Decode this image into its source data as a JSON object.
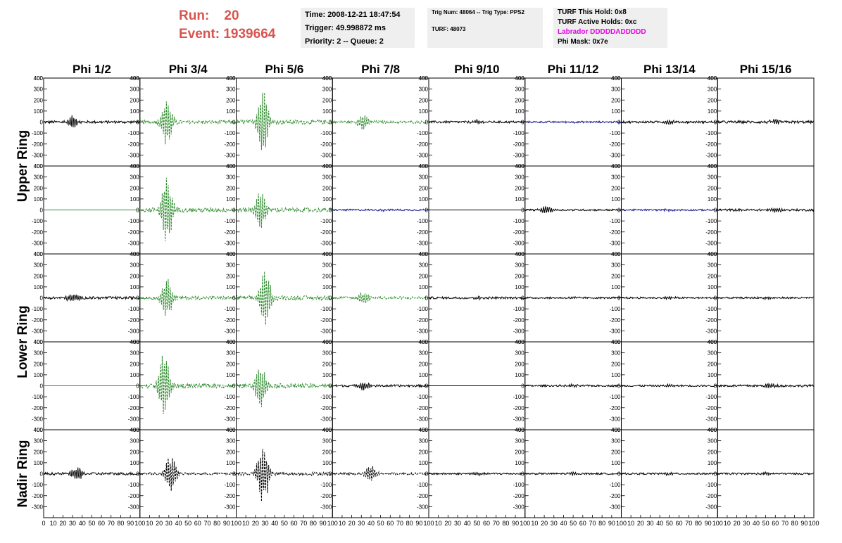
{
  "header": {
    "run_label": "Run:",
    "run_value": "20",
    "event_label": "Event:",
    "event_value": "1939664"
  },
  "info_time": {
    "time": "Time: 2008-12-21 18:47:54",
    "trigger": "Trigger: 49.998872 ms",
    "priority": "Priority: 2 -- Queue: 2"
  },
  "info_trig": {
    "trig": "Trig Num: 48064 -- Trig Type: PPS2",
    "turf": "TURF: 48073"
  },
  "info_turf": {
    "hold": "TURF This Hold: 0x8",
    "active": "TURF Active Holds: 0xc",
    "labrador": "Labrador DDDDDADDDDD",
    "phimask": "Phi Mask: 0x7e"
  },
  "colors": {
    "header_red": "#d9534f",
    "labrador_magenta": "#e600e6",
    "trace_black": "#000000",
    "trace_green": "#2e8b2e",
    "trace_blue": "#1a1a8c"
  },
  "chart_data": {
    "type": "line",
    "columns": [
      "Phi 1/2",
      "Phi 3/4",
      "Phi 5/6",
      "Phi 7/8",
      "Phi 9/10",
      "Phi 11/12",
      "Phi 13/14",
      "Phi 15/16"
    ],
    "ring_labels": [
      "Upper Ring",
      "Lower Ring",
      "Nadir Ring"
    ],
    "ylim": [
      -400,
      400
    ],
    "xlim": [
      0,
      100
    ],
    "y_ticks": [
      -300,
      -200,
      -100,
      0,
      100,
      200,
      300,
      400
    ],
    "x_ticks": [
      0,
      10,
      20,
      30,
      40,
      50,
      60,
      70,
      80,
      90,
      100
    ],
    "panels": [
      [
        {
          "color": "black",
          "style": "solid",
          "amp": 12,
          "peak": 60,
          "center": 30
        },
        {
          "color": "green",
          "style": "dashed",
          "amp": 15,
          "peak": 230,
          "center": 28
        },
        {
          "color": "green",
          "style": "dashed",
          "amp": 20,
          "peak": 360,
          "center": 28
        },
        {
          "color": "green",
          "style": "dashed",
          "amp": 12,
          "peak": 80,
          "center": 32
        },
        {
          "color": "black",
          "style": "solid",
          "amp": 10,
          "peak": 18,
          "center": 50
        },
        {
          "color": "blue",
          "style": "solid",
          "amp": 8,
          "peak": 10,
          "center": 50
        },
        {
          "color": "black",
          "style": "solid",
          "amp": 10,
          "peak": 20,
          "center": 50
        },
        {
          "color": "black",
          "style": "solid",
          "amp": 12,
          "peak": 25,
          "center": 60
        }
      ],
      [
        {
          "color": "green",
          "style": "solid",
          "amp": 0,
          "peak": 0,
          "center": 50
        },
        {
          "color": "green",
          "style": "dashed",
          "amp": 20,
          "peak": 350,
          "center": 28
        },
        {
          "color": "green",
          "style": "dashed",
          "amp": 20,
          "peak": 200,
          "center": 25
        },
        {
          "color": "blue",
          "style": "solid",
          "amp": 8,
          "peak": 10,
          "center": 50
        },
        {
          "color": "black",
          "style": "solid",
          "amp": 0,
          "peak": 0,
          "center": 50
        },
        {
          "color": "black",
          "style": "solid",
          "amp": 8,
          "peak": 40,
          "center": 22
        },
        {
          "color": "blue",
          "style": "solid",
          "amp": 8,
          "peak": 10,
          "center": 50
        },
        {
          "color": "black",
          "style": "solid",
          "amp": 10,
          "peak": 25,
          "center": 60
        }
      ],
      [
        {
          "color": "black",
          "style": "solid",
          "amp": 12,
          "peak": 40,
          "center": 30
        },
        {
          "color": "green",
          "style": "dashed",
          "amp": 15,
          "peak": 200,
          "center": 28
        },
        {
          "color": "green",
          "style": "dashed",
          "amp": 20,
          "peak": 300,
          "center": 30
        },
        {
          "color": "green",
          "style": "dashed",
          "amp": 12,
          "peak": 60,
          "center": 32
        },
        {
          "color": "black",
          "style": "solid",
          "amp": 10,
          "peak": 15,
          "center": 50
        },
        {
          "color": "black",
          "style": "solid",
          "amp": 8,
          "peak": 12,
          "center": 50
        },
        {
          "color": "black",
          "style": "solid",
          "amp": 8,
          "peak": 12,
          "center": 50
        },
        {
          "color": "black",
          "style": "solid",
          "amp": 8,
          "peak": 12,
          "center": 50
        }
      ],
      [
        {
          "color": "green",
          "style": "solid",
          "amp": 0,
          "peak": 0,
          "center": 50
        },
        {
          "color": "green",
          "style": "dashed",
          "amp": 20,
          "peak": 330,
          "center": 25
        },
        {
          "color": "green",
          "style": "dashed",
          "amp": 20,
          "peak": 200,
          "center": 25
        },
        {
          "color": "black",
          "style": "solid",
          "amp": 10,
          "peak": 40,
          "center": 33
        },
        {
          "color": "black",
          "style": "solid",
          "amp": 0,
          "peak": 0,
          "center": 50
        },
        {
          "color": "black",
          "style": "solid",
          "amp": 8,
          "peak": 12,
          "center": 50
        },
        {
          "color": "black",
          "style": "solid",
          "amp": 8,
          "peak": 12,
          "center": 50
        },
        {
          "color": "black",
          "style": "solid",
          "amp": 10,
          "peak": 25,
          "center": 55
        }
      ],
      [
        {
          "color": "black",
          "style": "solid",
          "amp": 12,
          "peak": 70,
          "center": 35
        },
        {
          "color": "black",
          "style": "dashed",
          "amp": 10,
          "peak": 180,
          "center": 32
        },
        {
          "color": "black",
          "style": "dashed",
          "amp": 15,
          "peak": 300,
          "center": 28
        },
        {
          "color": "black",
          "style": "dashed",
          "amp": 10,
          "peak": 80,
          "center": 40
        },
        {
          "color": "black",
          "style": "solid",
          "amp": 8,
          "peak": 15,
          "center": 50
        },
        {
          "color": "black",
          "style": "solid",
          "amp": 8,
          "peak": 15,
          "center": 50
        },
        {
          "color": "black",
          "style": "solid",
          "amp": 8,
          "peak": 15,
          "center": 50
        },
        {
          "color": "black",
          "style": "solid",
          "amp": 8,
          "peak": 15,
          "center": 50
        }
      ]
    ]
  }
}
